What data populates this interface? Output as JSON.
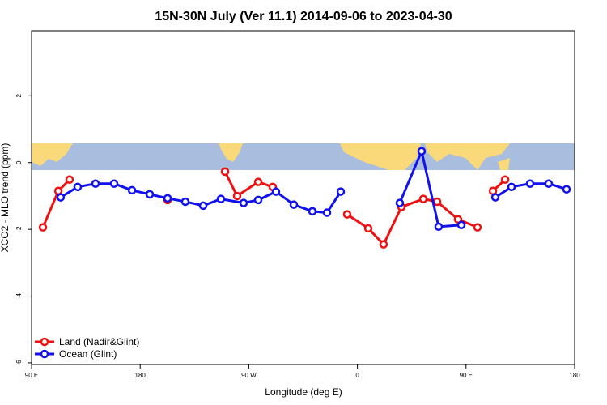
{
  "chart_data": {
    "type": "line",
    "title": "15N-30N July (Ver 11.1)   2014-09-06 to 2023-04-30",
    "xlabel": "Longitude (deg E)",
    "ylabel": "XCO2 - MLO trend (ppm)",
    "xlim": [
      90,
      540
    ],
    "ylim": [
      -6.05,
      3.95
    ],
    "xticks": [
      {
        "value": 90,
        "label": "90 E"
      },
      180,
      {
        "value": 270,
        "label": "90 W"
      },
      {
        "value": 360,
        "label": "0"
      },
      {
        "value": 450,
        "label": "90 E"
      },
      {
        "value": 540,
        "label": "180"
      }
    ],
    "yticks": [
      -6,
      -4,
      -2,
      0,
      2
    ],
    "legend": "bottom-left",
    "series": [
      {
        "name": "Land (Nadir&Glint)",
        "color": "#ee1111",
        "x": [
          99.4,
          112.2,
          121.5,
          null,
          202.7,
          null,
          250.3,
          260.3,
          277.8,
          289.8,
          null,
          351.5,
          369.0,
          381.7,
          396.5,
          414.6,
          426.0,
          443.4,
          459.5,
          null,
          472.3,
          482.4
        ],
        "values": [
          -1.94,
          -0.85,
          -0.51,
          null,
          -1.12,
          null,
          -0.27,
          -1.0,
          -0.58,
          -0.73,
          null,
          -1.55,
          -1.97,
          -2.45,
          -1.33,
          -1.09,
          -1.17,
          -1.7,
          -1.94,
          null,
          -0.85,
          -0.51
        ]
      },
      {
        "name": "Ocean (Glint)",
        "color": "#1111ee",
        "x": [
          114.1,
          128.2,
          143.0,
          158.4,
          173.2,
          187.9,
          202.7,
          217.4,
          232.2,
          246.9,
          265.7,
          277.8,
          292.5,
          307.3,
          322.7,
          334.8,
          346.2,
          null,
          395.1,
          413.2,
          427.3,
          446.1,
          null,
          474.3,
          487.7,
          503.1,
          518.5,
          533.3
        ],
        "values": [
          -1.04,
          -0.73,
          -0.63,
          -0.63,
          -0.83,
          -0.95,
          -1.07,
          -1.17,
          -1.29,
          -1.09,
          -1.21,
          -1.12,
          -0.87,
          -1.26,
          -1.46,
          -1.5,
          -0.87,
          null,
          -1.21,
          0.34,
          -1.92,
          -1.87,
          null,
          -1.04,
          -0.73,
          -0.63,
          -0.63,
          -0.8
        ]
      }
    ]
  }
}
